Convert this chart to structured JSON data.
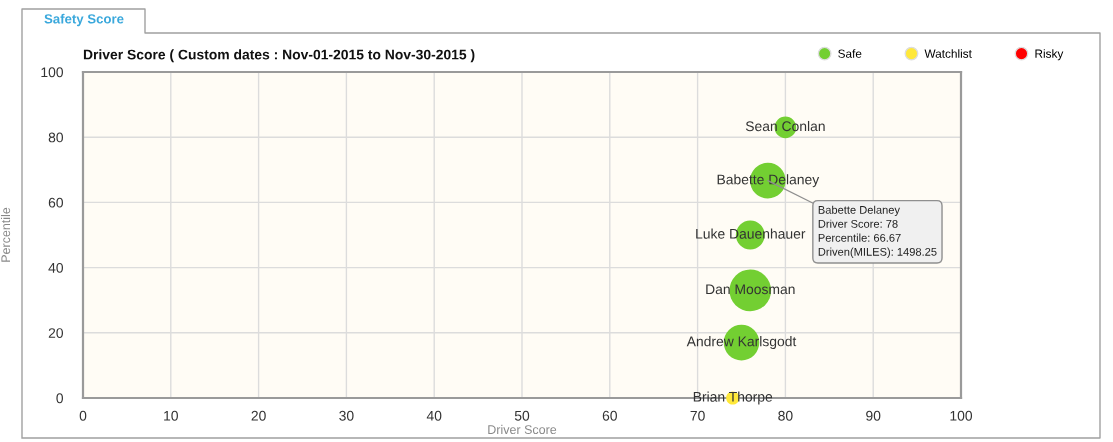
{
  "chart_data": {
    "type": "bubble",
    "title": "Safety Score",
    "subtitle": "Driver Score ( Custom dates : Nov-01-2015 to Nov-30-2015 )",
    "xlabel": "Driver Score",
    "ylabel": "Percentile",
    "series": [
      {
        "name": "Safe",
        "color": "#73cf32",
        "x": [
          80,
          78,
          76,
          76,
          75
        ],
        "values": [
          83,
          66.67,
          50,
          33,
          17
        ],
        "sizes": [
          0.27,
          0.73,
          0.48,
          1,
          0.73
        ]
      },
      {
        "name": "Watchlist",
        "color": "#ffe83a",
        "x": [
          74
        ],
        "values": [
          0
        ],
        "sizes": [
          0.1
        ]
      },
      {
        "name": "Risky",
        "color": "#ff0000"
      }
    ],
    "xlim": [
      0,
      100
    ],
    "ylim": [
      0,
      100
    ],
    "xticks": [
      0,
      10,
      20,
      30,
      40,
      50,
      60,
      70,
      80,
      90,
      100
    ],
    "yticks": [
      0,
      20,
      40,
      60,
      80,
      100
    ],
    "grid": true,
    "legend": "top right",
    "marker": "circle",
    "annotations": [
      {
        "text": "Sean Conlan",
        "x": 80,
        "y": 83
      },
      {
        "text": "Babette Delaney",
        "x": 78,
        "y": 66.67
      },
      {
        "text": "Luke Dauenhauer",
        "x": 76,
        "y": 50
      },
      {
        "text": "Dan Moosman",
        "x": 76,
        "y": 33
      },
      {
        "text": "Andrew Karlsgodt",
        "x": 75,
        "y": 17
      },
      {
        "text": "Brian Thorpe",
        "x": 74,
        "y": 0
      },
      {
        "text": "Babette Delaney\nDriver Score: 78\nPercentile: 66.67\nDriven(MILES): 1498.25",
        "x": 78,
        "y": 66.67
      }
    ]
  }
}
